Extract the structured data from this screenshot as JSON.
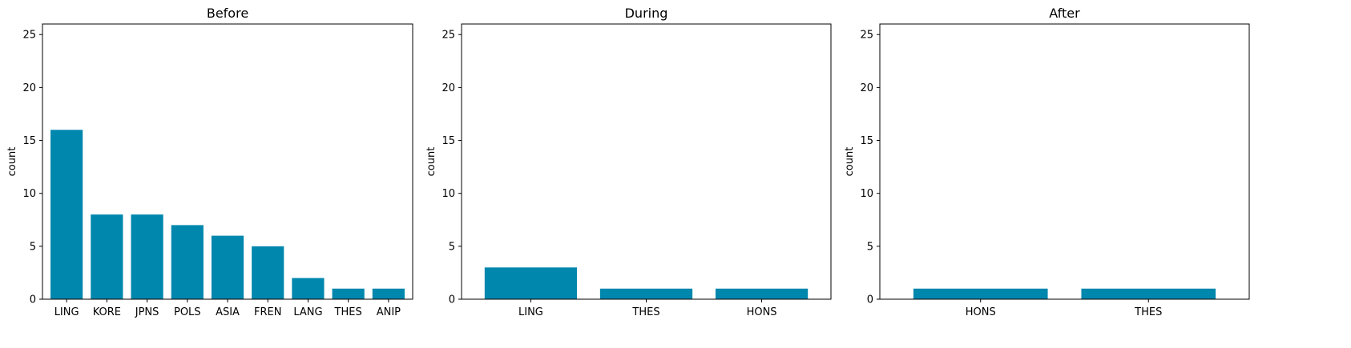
{
  "chart_data": [
    {
      "type": "bar",
      "title": "Before",
      "ylabel": "count",
      "xlabel": "",
      "categories": [
        "LING",
        "KORE",
        "JPNS",
        "POLS",
        "ASIA",
        "FREN",
        "LANG",
        "THES",
        "ANIP"
      ],
      "values": [
        16,
        8,
        8,
        7,
        6,
        5,
        2,
        1,
        1
      ],
      "ylim": [
        0,
        26
      ],
      "yticks": [
        0,
        5,
        10,
        15,
        20,
        25
      ],
      "color": "#0087ad",
      "grid": false
    },
    {
      "type": "bar",
      "title": "During",
      "ylabel": "count",
      "xlabel": "",
      "categories": [
        "LING",
        "THES",
        "HONS"
      ],
      "values": [
        3,
        1,
        1
      ],
      "ylim": [
        0,
        26
      ],
      "yticks": [
        0,
        5,
        10,
        15,
        20,
        25
      ],
      "color": "#0087ad",
      "grid": false
    },
    {
      "type": "bar",
      "title": "After",
      "ylabel": "count",
      "xlabel": "",
      "categories": [
        "HONS",
        "THES"
      ],
      "values": [
        1,
        1
      ],
      "ylim": [
        0,
        26
      ],
      "yticks": [
        0,
        5,
        10,
        15,
        20,
        25
      ],
      "color": "#0087ad",
      "grid": false
    }
  ]
}
